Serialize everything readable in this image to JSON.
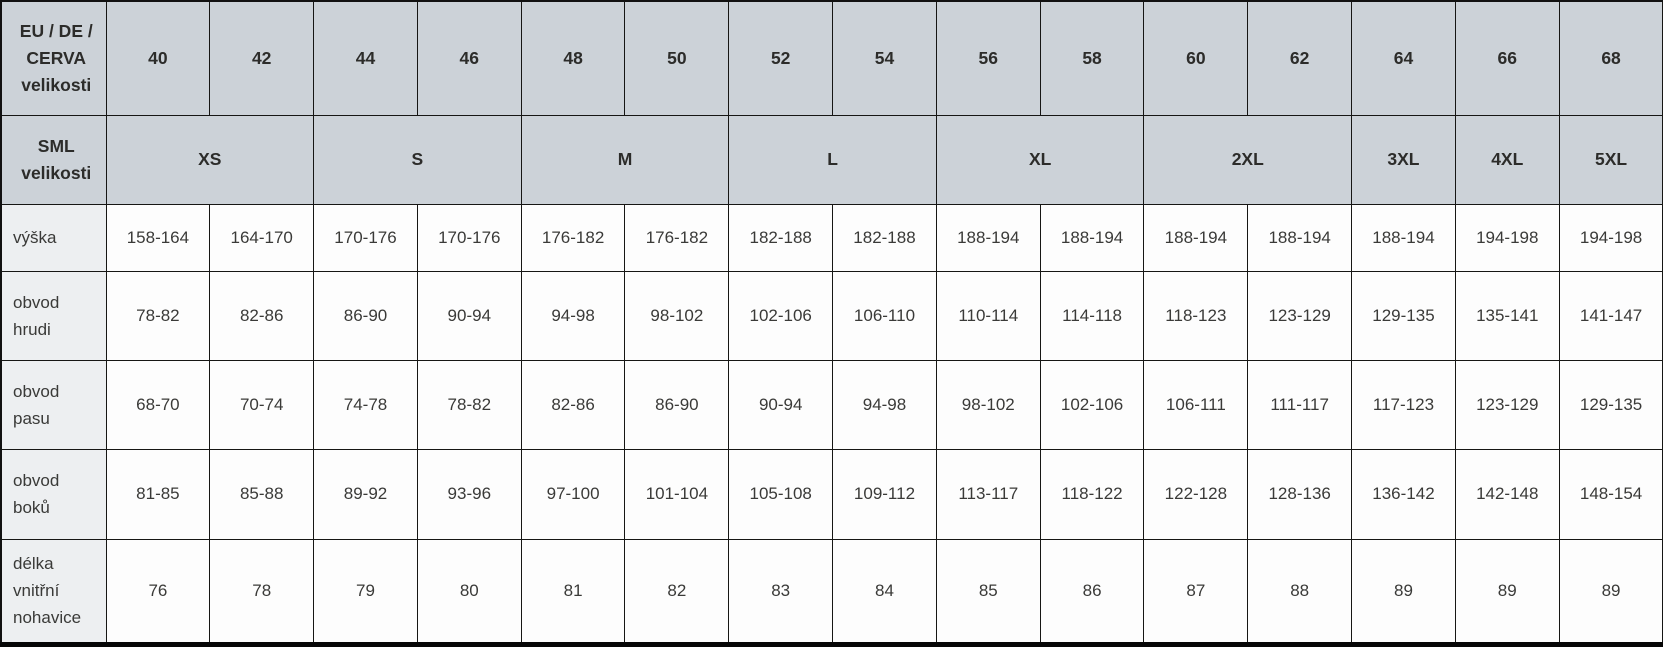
{
  "table": {
    "eu_header": {
      "label": "EU / DE / CERVA velikosti",
      "lines": [
        "EU / DE /",
        "CERVA",
        "velikosti"
      ],
      "sizes": [
        "40",
        "42",
        "44",
        "46",
        "48",
        "50",
        "52",
        "54",
        "56",
        "58",
        "60",
        "62",
        "64",
        "66",
        "68"
      ]
    },
    "sml_header": {
      "label": "SML velikosti",
      "lines": [
        "SML",
        "velikosti"
      ],
      "groups": [
        {
          "label": "XS",
          "span": 2
        },
        {
          "label": "S",
          "span": 2
        },
        {
          "label": "M",
          "span": 2
        },
        {
          "label": "L",
          "span": 2
        },
        {
          "label": "XL",
          "span": 2
        },
        {
          "label": "2XL",
          "span": 2
        },
        {
          "label": "3XL",
          "span": 1
        },
        {
          "label": "4XL",
          "span": 1
        },
        {
          "label": "5XL",
          "span": 1
        }
      ]
    },
    "rows": [
      {
        "label": "výška",
        "lines": [
          "výška"
        ],
        "values": [
          "158-164",
          "164-170",
          "170-176",
          "170-176",
          "176-182",
          "176-182",
          "182-188",
          "182-188",
          "188-194",
          "188-194",
          "188-194",
          "188-194",
          "188-194",
          "194-198",
          "194-198"
        ]
      },
      {
        "label": "obvod hrudi",
        "lines": [
          "obvod",
          "hrudi"
        ],
        "values": [
          "78-82",
          "82-86",
          "86-90",
          "90-94",
          "94-98",
          "98-102",
          "102-106",
          "106-110",
          "110-114",
          "114-118",
          "118-123",
          "123-129",
          "129-135",
          "135-141",
          "141-147"
        ]
      },
      {
        "label": "obvod pasu",
        "lines": [
          "obvod",
          "pasu"
        ],
        "values": [
          "68-70",
          "70-74",
          "74-78",
          "78-82",
          "82-86",
          "86-90",
          "90-94",
          "94-98",
          "98-102",
          "102-106",
          "106-111",
          "111-117",
          "117-123",
          "123-129",
          "129-135"
        ]
      },
      {
        "label": "obvod boků",
        "lines": [
          "obvod",
          "boků"
        ],
        "values": [
          "81-85",
          "85-88",
          "89-92",
          "93-96",
          "97-100",
          "101-104",
          "105-108",
          "109-112",
          "113-117",
          "118-122",
          "122-128",
          "128-136",
          "136-142",
          "142-148",
          "148-154"
        ]
      },
      {
        "label": "délka vnitřní nohavice",
        "lines": [
          "délka",
          "vnitřní",
          "nohavice"
        ],
        "values": [
          "76",
          "78",
          "79",
          "80",
          "81",
          "82",
          "83",
          "84",
          "85",
          "86",
          "87",
          "88",
          "89",
          "89",
          "89"
        ]
      }
    ]
  },
  "colors": {
    "header_bg": "#ccd2d8",
    "label_bg": "#edeff1",
    "cell_bg": "#fdfdfd",
    "border": "#161614",
    "bottom_border": "#060606",
    "text": "#3a3a38"
  }
}
